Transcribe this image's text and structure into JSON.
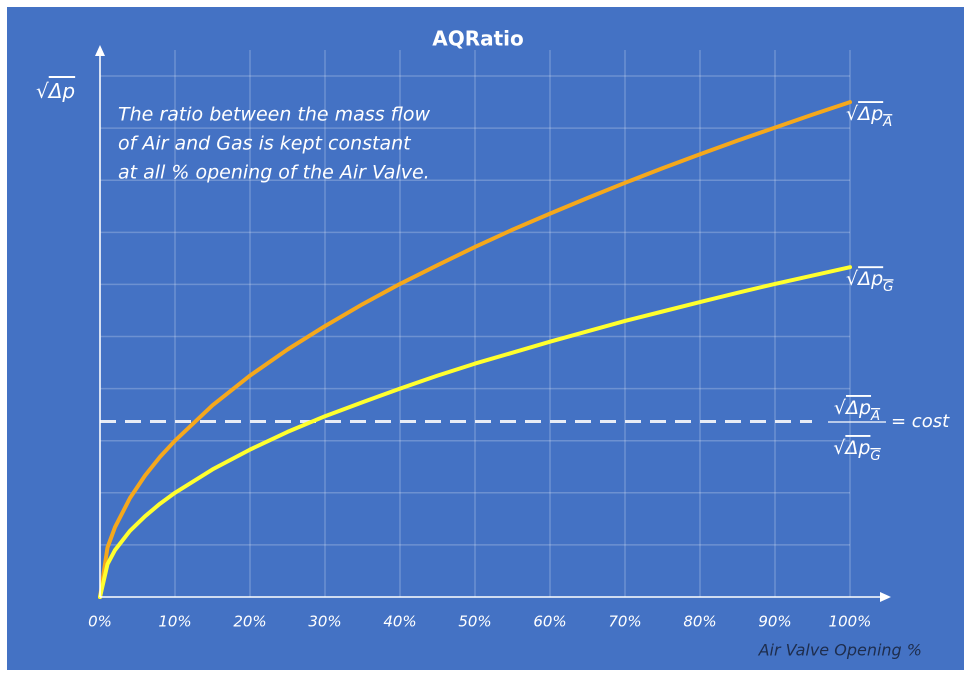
{
  "chart_data": {
    "type": "line",
    "title": "AQRatio",
    "y_label": "√Δp",
    "x_label": "Air Valve Opening %",
    "annotation": [
      "The ratio between the mass flow",
      "of Air and Gas is kept constant",
      "at all % opening of the Air Valve."
    ],
    "x": [
      0,
      1,
      2,
      4,
      6,
      8,
      10,
      15,
      20,
      25,
      30,
      35,
      40,
      45,
      50,
      55,
      60,
      65,
      70,
      75,
      80,
      85,
      90,
      95,
      100
    ],
    "series": [
      {
        "name": "√ΔpA",
        "color": "#f5a81c",
        "values": [
          0,
          0.95,
          1.34,
          1.9,
          2.33,
          2.69,
          3.0,
          3.68,
          4.25,
          4.75,
          5.2,
          5.62,
          6.01,
          6.37,
          6.72,
          7.05,
          7.36,
          7.66,
          7.95,
          8.23,
          8.5,
          8.76,
          9.01,
          9.26,
          9.5
        ]
      },
      {
        "name": "√ΔpG",
        "color": "#ffff2e",
        "values": [
          0,
          0.63,
          0.9,
          1.27,
          1.55,
          1.79,
          2.0,
          2.45,
          2.83,
          3.17,
          3.47,
          3.74,
          4.0,
          4.25,
          4.48,
          4.69,
          4.9,
          5.1,
          5.3,
          5.48,
          5.66,
          5.84,
          6.01,
          6.17,
          6.33
        ]
      }
    ],
    "reference_line": {
      "value": 3.37,
      "numerator": "√ΔpA",
      "denominator": "√ΔpG",
      "suffix": "= cost"
    },
    "xlim": [
      0,
      100
    ],
    "xticks": [
      {
        "value": 0,
        "label": "0%"
      },
      {
        "value": 10,
        "label": "10%"
      },
      {
        "value": 20,
        "label": "20%"
      },
      {
        "value": 30,
        "label": "30%"
      },
      {
        "value": 40,
        "label": "40%"
      },
      {
        "value": 50,
        "label": "50%"
      },
      {
        "value": 60,
        "label": "60%"
      },
      {
        "value": 70,
        "label": "70%"
      },
      {
        "value": 80,
        "label": "80%"
      },
      {
        "value": 90,
        "label": "90%"
      },
      {
        "value": 100,
        "label": "100%"
      }
    ],
    "ylim": [
      0,
      10.5
    ],
    "yticks": [
      1,
      2,
      3,
      4,
      5,
      6,
      7,
      8,
      9,
      10
    ],
    "grid": true
  }
}
